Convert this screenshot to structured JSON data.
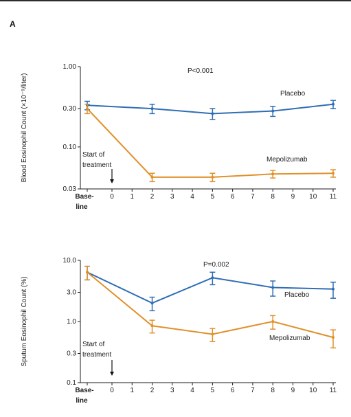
{
  "panel_label": "A",
  "colors": {
    "placebo": "#2f6db5",
    "mepolizumab": "#e0902a",
    "axis": "#1a1a1a"
  },
  "chart_data": [
    {
      "type": "line",
      "ylabel": "Blood Eosinophil Count (×10⁻⁹/liter)",
      "yscale": "log",
      "ylim": [
        0.03,
        1.0
      ],
      "yticks": [
        1.0,
        0.3,
        0.1,
        0.03
      ],
      "ytick_labels": [
        "1.00",
        "0.30",
        "0.10",
        "0.03"
      ],
      "x_ticks": [
        0,
        1,
        2,
        3,
        4,
        5,
        6,
        7,
        8,
        9,
        10,
        11
      ],
      "x_tick_labels": [
        "0",
        "1",
        "2",
        "3",
        "4",
        "5",
        "6",
        "7",
        "8",
        "9",
        "10",
        "11"
      ],
      "baseline_label_top": "Base-",
      "baseline_label_bottom": "line",
      "annotation": "P<0.001",
      "treatment_label_line1": "Start of",
      "treatment_label_line2": "treatment",
      "series": [
        {
          "name": "Placebo",
          "x": [
            "baseline",
            2,
            5,
            8,
            11
          ],
          "y": [
            0.33,
            0.3,
            0.26,
            0.28,
            0.34
          ],
          "err": [
            0.04,
            0.04,
            0.04,
            0.04,
            0.04
          ]
        },
        {
          "name": "Mepolizumab",
          "x": [
            "baseline",
            2,
            5,
            8,
            11
          ],
          "y": [
            0.3,
            0.042,
            0.042,
            0.046,
            0.047
          ],
          "err": [
            0.04,
            0.005,
            0.005,
            0.005,
            0.005
          ]
        }
      ]
    },
    {
      "type": "line",
      "ylabel": "Sputum Eosinophil Count (%)",
      "yscale": "log",
      "ylim": [
        0.1,
        10.0
      ],
      "yticks": [
        10.0,
        3.0,
        1.0,
        0.3,
        0.1
      ],
      "ytick_labels": [
        "10.0",
        "3.0",
        "1.0",
        "0.3",
        "0.1"
      ],
      "x_ticks": [
        0,
        1,
        2,
        3,
        4,
        5,
        6,
        7,
        8,
        9,
        10,
        11
      ],
      "x_tick_labels": [
        "0",
        "1",
        "2",
        "3",
        "4",
        "5",
        "6",
        "7",
        "8",
        "9",
        "10",
        "11"
      ],
      "baseline_label_top": "Base-",
      "baseline_label_bottom": "line",
      "annotation": "P=0.002",
      "treatment_label_line1": "Start of",
      "treatment_label_line2": "treatment",
      "series": [
        {
          "name": "Placebo",
          "x": [
            "baseline",
            2,
            5,
            8,
            11
          ],
          "y": [
            6.4,
            2.0,
            5.2,
            3.6,
            3.4
          ],
          "err": [
            1.6,
            0.5,
            1.2,
            1.0,
            1.0
          ]
        },
        {
          "name": "Mepolizumab",
          "x": [
            "baseline",
            2,
            5,
            8,
            11
          ],
          "y": [
            6.4,
            0.85,
            0.62,
            1.0,
            0.55
          ],
          "err": [
            1.6,
            0.2,
            0.15,
            0.25,
            0.18
          ]
        }
      ]
    }
  ]
}
